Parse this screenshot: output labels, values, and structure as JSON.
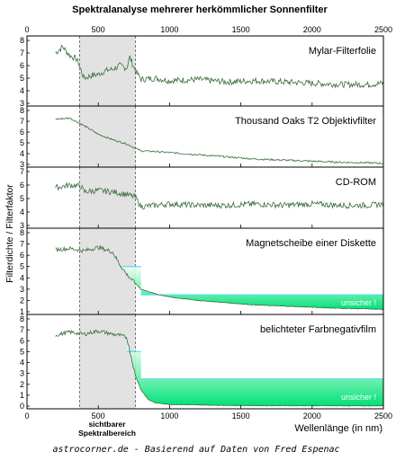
{
  "title": "Spektralanalyse mehrerer herkömmlicher Sonnenfilter",
  "ylabel": "Filterdichte / Filterfaktor",
  "xlabel": "Wellenlänge (in nm)",
  "visible_region_label_line1": "sichtbarer",
  "visible_region_label_line2": "Spektralbereich",
  "credit": "astrocorner.de - Basierend auf Daten von Fred Espenac",
  "uncertain_label": "unsicher !",
  "colors": {
    "line": "#3c6e3c",
    "band": "#e2e2e2",
    "fill": "#00ee88",
    "cap": "#55ddee"
  },
  "chart_data": [
    {
      "type": "line",
      "name": "Mylar-Filterfolie",
      "xlim": [
        0,
        2500
      ],
      "ylim": [
        3,
        8
      ],
      "yticks": [
        3,
        4,
        5,
        6,
        7,
        8
      ],
      "xticks": [
        0,
        500,
        1000,
        1500,
        2000,
        2500
      ],
      "grid": false,
      "visible_band": [
        370,
        760
      ],
      "series": [
        {
          "x": [
            200,
            250,
            300,
            350,
            400,
            450,
            500,
            550,
            600,
            650,
            700,
            720,
            760,
            800,
            900,
            1000,
            1200,
            1400,
            1600,
            1800,
            2000,
            2200,
            2400,
            2500
          ],
          "y": [
            7.0,
            7.5,
            6.8,
            6.5,
            5.0,
            5.2,
            5.3,
            5.6,
            5.7,
            6.0,
            5.8,
            6.7,
            5.6,
            4.9,
            5.0,
            4.8,
            4.9,
            4.7,
            4.8,
            4.7,
            4.6,
            4.5,
            4.5,
            4.6
          ]
        }
      ]
    },
    {
      "type": "line",
      "name": "Thousand Oaks T2 Objektivfilter",
      "xlim": [
        0,
        2500
      ],
      "ylim": [
        3,
        8
      ],
      "yticks": [
        3,
        4,
        5,
        6,
        7,
        8
      ],
      "xticks": [
        0,
        500,
        1000,
        1500,
        2000,
        2500
      ],
      "grid": false,
      "visible_band": [
        370,
        760
      ],
      "series": [
        {
          "x": [
            200,
            300,
            400,
            500,
            600,
            700,
            760,
            800,
            900,
            1000,
            1200,
            1400,
            1600,
            1800,
            2000,
            2200,
            2400,
            2500
          ],
          "y": [
            7.2,
            7.3,
            6.6,
            5.8,
            5.3,
            4.9,
            4.5,
            4.25,
            4.2,
            4.1,
            3.9,
            3.7,
            3.5,
            3.4,
            3.3,
            3.2,
            3.15,
            3.1
          ]
        }
      ]
    },
    {
      "type": "line",
      "name": "CD-ROM",
      "xlim": [
        0,
        2500
      ],
      "ylim": [
        3,
        7
      ],
      "yticks": [
        3,
        4,
        5,
        6,
        7
      ],
      "xticks": [
        0,
        500,
        1000,
        1500,
        2000,
        2500
      ],
      "grid": false,
      "visible_band": [
        370,
        760
      ],
      "series": [
        {
          "x": [
            200,
            300,
            380,
            400,
            500,
            600,
            700,
            760,
            800,
            1000,
            1200,
            1400,
            1600,
            1800,
            2000,
            2200,
            2400,
            2500
          ],
          "y": [
            5.8,
            6.0,
            5.9,
            5.5,
            5.6,
            5.5,
            5.3,
            5.1,
            4.4,
            4.6,
            4.5,
            4.5,
            4.6,
            4.5,
            4.6,
            4.5,
            4.5,
            4.6
          ]
        }
      ]
    },
    {
      "type": "area",
      "name": "Magnetscheibe einer Diskette",
      "xlim": [
        0,
        2500
      ],
      "ylim": [
        1,
        8
      ],
      "yticks": [
        1,
        2,
        3,
        4,
        5,
        6,
        7,
        8
      ],
      "xticks": [
        0,
        500,
        1000,
        1500,
        2000,
        2500
      ],
      "grid": false,
      "visible_band": [
        370,
        760
      ],
      "uncertain_cap_levels": [
        [
          650,
          800,
          5.0
        ],
        [
          800,
          2500,
          2.5
        ]
      ],
      "series": [
        {
          "x": [
            200,
            300,
            400,
            500,
            600,
            650,
            700,
            760,
            800,
            900,
            1000,
            1200,
            1400,
            1600,
            1800,
            2000,
            2200,
            2400,
            2500
          ],
          "y": [
            6.5,
            6.6,
            6.4,
            6.7,
            6.3,
            5.2,
            4.3,
            3.5,
            3.0,
            2.6,
            2.3,
            2.0,
            1.8,
            1.6,
            1.5,
            1.4,
            1.3,
            1.25,
            1.2
          ]
        }
      ]
    },
    {
      "type": "area",
      "name": "belichteter Farbnegativfilm",
      "xlim": [
        0,
        2500
      ],
      "ylim": [
        0,
        8
      ],
      "yticks": [
        0,
        1,
        2,
        3,
        4,
        5,
        6,
        7,
        8
      ],
      "xticks": [
        0,
        500,
        1000,
        1500,
        2000,
        2500
      ],
      "grid": false,
      "visible_band": [
        370,
        760
      ],
      "uncertain_cap_levels": [
        [
          700,
          800,
          5.0
        ],
        [
          800,
          2500,
          2.5
        ]
      ],
      "series": [
        {
          "x": [
            200,
            300,
            400,
            500,
            600,
            650,
            700,
            740,
            760,
            800,
            850,
            900,
            1000,
            1200,
            1500,
            2000,
            2500
          ],
          "y": [
            6.5,
            6.8,
            6.6,
            6.9,
            6.6,
            6.5,
            6.3,
            4.0,
            2.8,
            1.5,
            0.6,
            0.3,
            0.15,
            0.1,
            0.05,
            0.03,
            0.02
          ]
        }
      ]
    }
  ]
}
